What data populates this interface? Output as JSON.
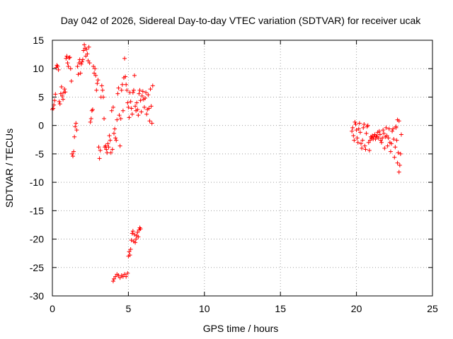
{
  "chart_data": {
    "type": "scatter",
    "title": "Day 042 of 2026, Sidereal Day-to-day VTEC variation (SDTVAR) for receiver ucak",
    "xlabel": "GPS time / hours",
    "ylabel": "SDTVAR / TECUs",
    "xlim": [
      0,
      25
    ],
    "ylim": [
      -30,
      15
    ],
    "xticks": [
      "0",
      "5",
      "10",
      "15",
      "20",
      "25"
    ],
    "yticks": [
      "15",
      "10",
      "5",
      "0",
      "-5",
      "-10",
      "-15",
      "-20",
      "-25",
      "-30"
    ],
    "grid": true,
    "marker": "plus",
    "color": "#ff0000",
    "series": [
      {
        "name": "SDTVAR",
        "points": [
          [
            0.0,
            2.8
          ],
          [
            0.05,
            3.0
          ],
          [
            0.1,
            3.6
          ],
          [
            0.15,
            4.4
          ],
          [
            0.2,
            5.5
          ],
          [
            0.25,
            10.2
          ],
          [
            0.3,
            10.6
          ],
          [
            0.35,
            10.4
          ],
          [
            0.4,
            9.8
          ],
          [
            0.45,
            4.2
          ],
          [
            0.5,
            3.8
          ],
          [
            0.55,
            5.6
          ],
          [
            0.6,
            6.8
          ],
          [
            0.65,
            5.2
          ],
          [
            0.7,
            4.6
          ],
          [
            0.75,
            5.8
          ],
          [
            0.8,
            6.4
          ],
          [
            0.85,
            5.9
          ],
          [
            0.9,
            11.8
          ],
          [
            0.95,
            12.2
          ],
          [
            1.0,
            11.0
          ],
          [
            1.05,
            10.4
          ],
          [
            1.1,
            11.9
          ],
          [
            1.15,
            12.0
          ],
          [
            1.2,
            10.0
          ],
          [
            1.25,
            7.8
          ],
          [
            1.3,
            -5.0
          ],
          [
            1.35,
            -5.4
          ],
          [
            1.4,
            -4.6
          ],
          [
            1.45,
            -2.0
          ],
          [
            1.5,
            -0.2
          ],
          [
            1.55,
            0.4
          ],
          [
            1.6,
            -0.8
          ],
          [
            1.65,
            10.4
          ],
          [
            1.7,
            9.0
          ],
          [
            1.75,
            11.0
          ],
          [
            1.8,
            11.6
          ],
          [
            1.85,
            9.2
          ],
          [
            1.9,
            10.8
          ],
          [
            1.95,
            11.2
          ],
          [
            2.0,
            11.6
          ],
          [
            2.05,
            13.2
          ],
          [
            2.1,
            14.2
          ],
          [
            2.15,
            13.6
          ],
          [
            2.2,
            12.2
          ],
          [
            2.25,
            13.4
          ],
          [
            2.3,
            12.6
          ],
          [
            2.35,
            11.4
          ],
          [
            2.4,
            13.8
          ],
          [
            2.45,
            11.0
          ],
          [
            2.5,
            0.6
          ],
          [
            2.55,
            1.2
          ],
          [
            2.6,
            2.6
          ],
          [
            2.65,
            2.8
          ],
          [
            2.7,
            10.4
          ],
          [
            2.75,
            9.2
          ],
          [
            2.8,
            10.0
          ],
          [
            2.85,
            8.8
          ],
          [
            2.9,
            6.2
          ],
          [
            2.95,
            7.4
          ],
          [
            3.0,
            8.0
          ],
          [
            3.05,
            -3.8
          ],
          [
            3.1,
            -5.8
          ],
          [
            3.15,
            -4.4
          ],
          [
            3.2,
            5.0
          ],
          [
            3.25,
            7.0
          ],
          [
            3.3,
            6.2
          ],
          [
            3.35,
            5.0
          ],
          [
            3.4,
            1.2
          ],
          [
            3.45,
            -3.8
          ],
          [
            3.5,
            -3.6
          ],
          [
            3.55,
            -4.2
          ],
          [
            3.6,
            -4.8
          ],
          [
            3.65,
            -3.2
          ],
          [
            3.7,
            -3.8
          ],
          [
            3.75,
            -1.8
          ],
          [
            3.8,
            -2.6
          ],
          [
            3.85,
            -4.8
          ],
          [
            3.9,
            2.6
          ],
          [
            3.95,
            -4.2
          ],
          [
            4.0,
            3.2
          ],
          [
            4.05,
            -1.4
          ],
          [
            4.1,
            -0.6
          ],
          [
            4.15,
            -2.2
          ],
          [
            4.2,
            -2.6
          ],
          [
            4.25,
            1.0
          ],
          [
            4.3,
            5.6
          ],
          [
            4.35,
            6.6
          ],
          [
            4.4,
            1.8
          ],
          [
            4.45,
            -3.6
          ],
          [
            4.5,
            1.2
          ],
          [
            4.55,
            6.2
          ],
          [
            4.6,
            7.2
          ],
          [
            4.65,
            2.6
          ],
          [
            4.7,
            8.4
          ],
          [
            4.75,
            11.8
          ],
          [
            4.8,
            8.6
          ],
          [
            4.85,
            7.2
          ],
          [
            4.9,
            6.2
          ],
          [
            4.95,
            4.0
          ],
          [
            5.0,
            3.2
          ],
          [
            5.05,
            1.4
          ],
          [
            5.1,
            5.8
          ],
          [
            5.15,
            4.2
          ],
          [
            5.2,
            3.0
          ],
          [
            5.25,
            2.0
          ],
          [
            5.3,
            5.8
          ],
          [
            5.35,
            6.2
          ],
          [
            5.4,
            8.8
          ],
          [
            5.45,
            3.4
          ],
          [
            5.5,
            2.6
          ],
          [
            5.55,
            4.0
          ],
          [
            5.6,
            2.8
          ],
          [
            5.65,
            1.8
          ],
          [
            5.7,
            5.6
          ],
          [
            5.75,
            6.2
          ],
          [
            5.8,
            4.4
          ],
          [
            5.85,
            2.4
          ],
          [
            5.9,
            5.2
          ],
          [
            5.95,
            6.0
          ],
          [
            6.0,
            4.6
          ],
          [
            6.05,
            3.2
          ],
          [
            6.1,
            4.8
          ],
          [
            6.15,
            5.8
          ],
          [
            6.2,
            2.0
          ],
          [
            6.25,
            2.8
          ],
          [
            6.3,
            5.4
          ],
          [
            6.35,
            3.0
          ],
          [
            6.4,
            0.8
          ],
          [
            6.45,
            6.4
          ],
          [
            6.5,
            3.4
          ],
          [
            6.55,
            0.4
          ],
          [
            6.6,
            7.0
          ],
          [
            4.0,
            -27.4
          ],
          [
            4.05,
            -27.0
          ],
          [
            4.15,
            -26.6
          ],
          [
            4.25,
            -26.2
          ],
          [
            4.35,
            -26.4
          ],
          [
            4.45,
            -26.8
          ],
          [
            4.55,
            -26.4
          ],
          [
            4.65,
            -26.6
          ],
          [
            4.75,
            -26.2
          ],
          [
            4.85,
            -26.6
          ],
          [
            4.95,
            -26.0
          ],
          [
            5.0,
            -23.0
          ],
          [
            5.05,
            -22.2
          ],
          [
            5.1,
            -22.8
          ],
          [
            5.15,
            -21.8
          ],
          [
            5.2,
            -20.2
          ],
          [
            5.25,
            -19.0
          ],
          [
            5.3,
            -18.6
          ],
          [
            5.35,
            -20.4
          ],
          [
            5.4,
            -19.2
          ],
          [
            5.45,
            -20.6
          ],
          [
            5.5,
            -20.0
          ],
          [
            5.55,
            -19.4
          ],
          [
            5.6,
            -18.8
          ],
          [
            5.65,
            -19.6
          ],
          [
            5.7,
            -18.4
          ],
          [
            5.75,
            -18.0
          ],
          [
            5.8,
            -18.2
          ],
          [
            19.7,
            -1.0
          ],
          [
            19.75,
            -0.4
          ],
          [
            19.8,
            -1.8
          ],
          [
            19.85,
            -2.6
          ],
          [
            19.9,
            0.6
          ],
          [
            19.95,
            0.2
          ],
          [
            20.0,
            -0.8
          ],
          [
            20.05,
            -2.2
          ],
          [
            20.1,
            -3.0
          ],
          [
            20.15,
            -0.6
          ],
          [
            20.2,
            0.4
          ],
          [
            20.25,
            -1.2
          ],
          [
            20.3,
            -3.2
          ],
          [
            20.35,
            -4.0
          ],
          [
            20.4,
            -2.6
          ],
          [
            20.45,
            -0.4
          ],
          [
            20.5,
            0.2
          ],
          [
            20.55,
            -3.6
          ],
          [
            20.6,
            -4.2
          ],
          [
            20.65,
            -1.4
          ],
          [
            20.7,
            -0.2
          ],
          [
            20.75,
            0.0
          ],
          [
            20.8,
            -3.0
          ],
          [
            20.85,
            -4.4
          ],
          [
            20.9,
            -2.6
          ],
          [
            20.95,
            -2.0
          ],
          [
            21.0,
            -2.2
          ],
          [
            21.05,
            -1.8
          ],
          [
            21.1,
            -2.4
          ],
          [
            21.15,
            -2.0
          ],
          [
            21.2,
            -1.6
          ],
          [
            21.25,
            -2.4
          ],
          [
            21.3,
            -1.8
          ],
          [
            21.35,
            -2.0
          ],
          [
            21.4,
            -1.2
          ],
          [
            21.45,
            -2.2
          ],
          [
            21.5,
            -1.0
          ],
          [
            21.55,
            -1.6
          ],
          [
            21.6,
            -2.6
          ],
          [
            21.65,
            -3.0
          ],
          [
            21.7,
            -2.2
          ],
          [
            21.75,
            -0.8
          ],
          [
            21.8,
            -1.4
          ],
          [
            21.85,
            -4.0
          ],
          [
            21.9,
            -2.0
          ],
          [
            21.95,
            -0.4
          ],
          [
            22.0,
            -1.8
          ],
          [
            22.05,
            -3.6
          ],
          [
            22.1,
            -2.2
          ],
          [
            22.15,
            -0.6
          ],
          [
            22.2,
            -3.0
          ],
          [
            22.25,
            -4.6
          ],
          [
            22.3,
            -3.2
          ],
          [
            22.35,
            -1.0
          ],
          [
            22.4,
            -0.6
          ],
          [
            22.45,
            -2.4
          ],
          [
            22.5,
            -5.6
          ],
          [
            22.55,
            -3.8
          ],
          [
            22.6,
            -0.2
          ],
          [
            22.65,
            -2.6
          ],
          [
            22.7,
            -6.6
          ],
          [
            22.75,
            -4.8
          ],
          [
            22.8,
            -8.2
          ],
          [
            22.85,
            -7.0
          ],
          [
            22.9,
            -5.0
          ],
          [
            22.95,
            -1.6
          ],
          [
            22.8,
            0.8
          ],
          [
            22.7,
            1.0
          ],
          [
            22.6,
            -0.4
          ]
        ]
      }
    ]
  }
}
